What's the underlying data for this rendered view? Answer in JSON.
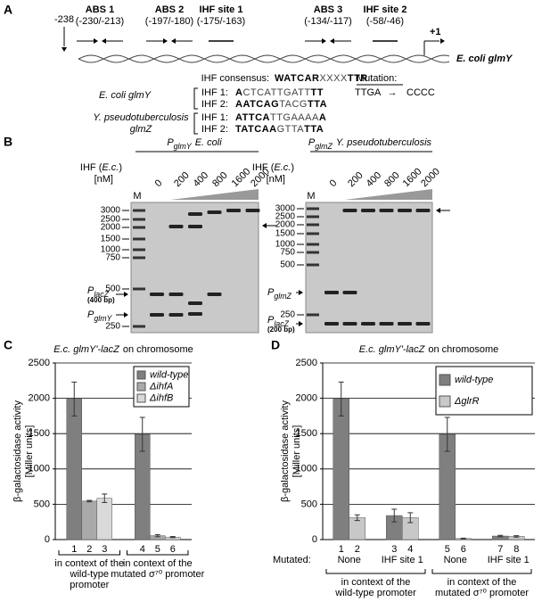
{
  "panel_a": {
    "label": "A",
    "start": "-238",
    "sites": [
      {
        "name": "ABS 1",
        "range": "(-230/-213)"
      },
      {
        "name": "ABS 2",
        "range": "(-197/-180)"
      },
      {
        "name": "IHF site 1",
        "range": "(-175/-163)"
      },
      {
        "name": "ABS 3",
        "range": "(-134/-117)"
      },
      {
        "name": "IHF site 2",
        "range": "(-58/-46)"
      }
    ],
    "tss": "+1",
    "gene": "E. coli glmY",
    "consensus": {
      "label": "IHF consensus:",
      "seq": [
        "WATCAR",
        "XXXX",
        "TTR"
      ]
    },
    "mutation": {
      "label": "Mutation:",
      "from": "TTGA",
      "arrow": "→",
      "to": "CCCC"
    },
    "organisms": [
      {
        "name": [
          "E. coli glmY"
        ],
        "sites": [
          {
            "label": "IHF 1:",
            "seq": [
              "A",
              "CTCATTGATT",
              "TT"
            ]
          },
          {
            "label": "IHF 2:",
            "seq": [
              "AATCAG",
              "TACG",
              "TTA"
            ]
          }
        ]
      },
      {
        "name": [
          "Y. pseudotuberculosis",
          "glmZ"
        ],
        "sites": [
          {
            "label": "IHF 1:",
            "seq": [
              "ATTCA",
              "TTGAAAA",
              "A"
            ]
          },
          {
            "label": "IHF 2:",
            "seq": [
              "TATCAA",
              "GTTA",
              "TTA"
            ]
          }
        ]
      }
    ]
  },
  "panel_b": {
    "label": "B",
    "gels": [
      {
        "promoter": "P",
        "promoter_sub": "glmY",
        "organism": "E. coli",
        "ihf": {
          "pre": "IHF (",
          "org": "E.c.",
          "post": ")"
        },
        "unit": "[nM]",
        "marker": "M",
        "concentrations": [
          0,
          200,
          400,
          800,
          1600,
          2000
        ],
        "markers": [
          3000,
          2500,
          2000,
          1500,
          1000,
          750,
          500,
          250
        ],
        "bands": [
          {
            "main": "P",
            "sub": "lacZ",
            "note": "(400 bp)"
          },
          {
            "main": "P",
            "sub": "glmY"
          }
        ]
      },
      {
        "promoter": "P",
        "promoter_sub": "glmZ",
        "organism": "Y. pseudotuberculosis",
        "ihf": {
          "pre": "IHF (",
          "org": "E.c.",
          "post": ")"
        },
        "unit": "[nM]",
        "marker": "M",
        "concentrations": [
          0,
          200,
          400,
          800,
          1600,
          2000
        ],
        "markers": [
          3000,
          2500,
          2000,
          1500,
          1000,
          750,
          500,
          250
        ],
        "bands": [
          {
            "main": "P",
            "sub": "glmZ"
          },
          {
            "main": "P",
            "sub": "lacZ",
            "note": "(200 bp)"
          }
        ]
      }
    ]
  },
  "chart_data": [
    {
      "type": "bar",
      "label": "C",
      "title_italic": "E.c. glmY'-lacZ",
      "title_rest": "on chromosome",
      "ylabel": [
        "β-galactosidase activity",
        "[Miller units]"
      ],
      "ylim": [
        0,
        2500
      ],
      "yticks": [
        0,
        500,
        1000,
        1500,
        2000,
        2500
      ],
      "grid": true,
      "legend": "upper right",
      "captions": [
        [
          "in context of the",
          "wild-type",
          "promoter"
        ],
        [
          "in context of the",
          "mutated σ⁷⁰ promoter"
        ]
      ],
      "series": [
        {
          "name": "wild-type",
          "color": "#7f7f7f",
          "values": [
            1990,
            1490
          ],
          "errors": [
            240,
            240
          ],
          "bar_labels": [
            "1",
            "4"
          ]
        },
        {
          "name": "ΔihfA",
          "color": "#a9a9a9",
          "values": [
            545,
            55
          ],
          "errors": [
            10,
            15
          ],
          "bar_labels": [
            "2",
            "5"
          ]
        },
        {
          "name": "ΔihfB",
          "color": "#d9d9d9",
          "values": [
            585,
            35
          ],
          "errors": [
            60,
            8
          ],
          "bar_labels": [
            "3",
            "6"
          ]
        }
      ]
    },
    {
      "type": "bar",
      "label": "D",
      "title_italic": "E.c. glmY'-lacZ",
      "title_rest": "on chromosome",
      "ylabel": [
        "β-galactosidase activity",
        "[Miller units]"
      ],
      "ylim": [
        0,
        2500
      ],
      "yticks": [
        0,
        500,
        1000,
        1500,
        2000,
        2500
      ],
      "grid": true,
      "legend": "upper right",
      "category_title": "Mutated:",
      "categories": [
        "None",
        "IHF site 1",
        "None",
        "IHF site 1"
      ],
      "captions": [
        [
          "in context of the",
          "wild-type promoter"
        ],
        [
          "in context of the",
          "mutated σ⁷⁰ promoter"
        ]
      ],
      "series": [
        {
          "name": "wild-type",
          "color": "#7f7f7f",
          "values": [
            1990,
            340,
            1490,
            50
          ],
          "errors": [
            240,
            90,
            240,
            10
          ],
          "bar_labels": [
            "1",
            "3",
            "5",
            "7"
          ]
        },
        {
          "name": "ΔglrR",
          "color": "#c8c8c8",
          "values": [
            310,
            310,
            15,
            45
          ],
          "errors": [
            40,
            70,
            5,
            10
          ],
          "bar_labels": [
            "2",
            "4",
            "6",
            "8"
          ]
        }
      ]
    }
  ]
}
